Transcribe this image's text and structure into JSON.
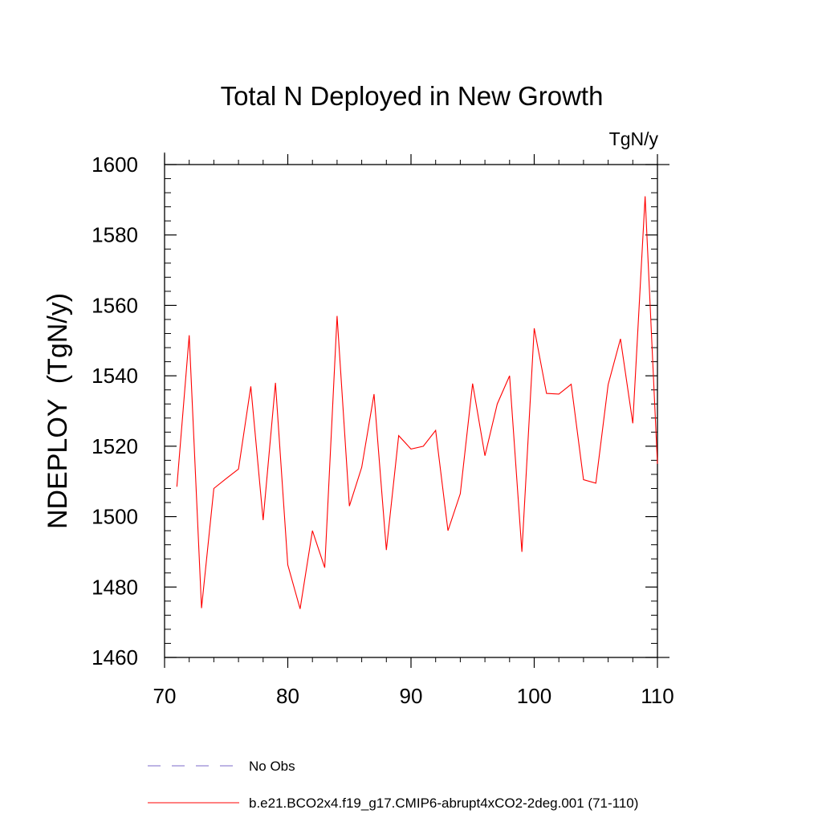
{
  "chart_data": {
    "type": "line",
    "title": "Total N Deployed in New Growth",
    "units_label": "TgN/y",
    "ylabel": "NDEPLOY  (TgN/y)",
    "xlabel": "",
    "xlim": [
      70,
      110
    ],
    "ylim": [
      1460,
      1600
    ],
    "x_ticks": [
      70,
      80,
      90,
      100,
      110
    ],
    "x_tick_labels": [
      "70",
      "80",
      "90",
      "100",
      "110"
    ],
    "y_ticks": [
      1460,
      1480,
      1500,
      1520,
      1540,
      1560,
      1580,
      1600
    ],
    "y_tick_labels": [
      "1460",
      "1480",
      "1500",
      "1520",
      "1540",
      "1560",
      "1580",
      "1600"
    ],
    "grid": false,
    "series": [
      {
        "name": "b.e21.BCO2x4.f19_g17.CMIP6-abrupt4xCO2-2deg.001 (71-110)",
        "color": "#ff0000",
        "style": "solid",
        "x": [
          71,
          72,
          73,
          74,
          75,
          76,
          77,
          78,
          79,
          80,
          81,
          82,
          83,
          84,
          85,
          86,
          87,
          88,
          89,
          90,
          91,
          92,
          93,
          94,
          95,
          96,
          97,
          98,
          99,
          100,
          101,
          102,
          103,
          104,
          105,
          106,
          107,
          108,
          109,
          110
        ],
        "values": [
          1508.5,
          1551.5,
          1474,
          1508,
          1510.8,
          1513.5,
          1537,
          1499,
          1538,
          1486.3,
          1473.8,
          1496,
          1485.5,
          1557,
          1503,
          1514,
          1534.8,
          1490.5,
          1523,
          1519.2,
          1520,
          1524.5,
          1496,
          1506.5,
          1537.8,
          1517.3,
          1532,
          1540,
          1490,
          1553.5,
          1535,
          1534.8,
          1537.6,
          1510.5,
          1509.5,
          1537.5,
          1550.5,
          1526.5,
          1591,
          1515
        ]
      }
    ],
    "legend": [
      {
        "label": "No Obs",
        "color": "#7b68c8",
        "style": "dashed"
      },
      {
        "label": "b.e21.BCO2x4.f19_g17.CMIP6-abrupt4xCO2-2deg.001 (71-110)",
        "color": "#ff0000",
        "style": "solid"
      }
    ],
    "legend_position": "bottom"
  }
}
